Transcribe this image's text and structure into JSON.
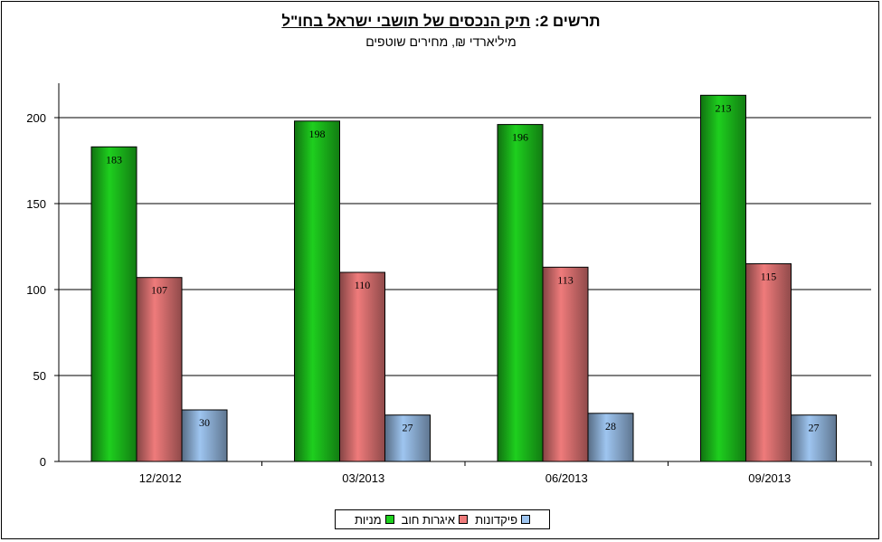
{
  "title": {
    "prefix": "תרשים 2:",
    "main": "תיק הנכסים של תושבי ישראל בחו\"ל"
  },
  "subtitle": "מיליארדי ₪, מחירים שוטפים",
  "chart_data": {
    "type": "bar",
    "categories": [
      "12/2012",
      "03/2013",
      "06/2013",
      "09/2013"
    ],
    "series": [
      {
        "name": "מניות",
        "values": [
          183,
          198,
          196,
          213
        ],
        "color": "#1ecf1e"
      },
      {
        "name": "איגרות חוב",
        "values": [
          107,
          110,
          113,
          115
        ],
        "color": "#ef7b7b"
      },
      {
        "name": "פיקדונות",
        "values": [
          30,
          27,
          28,
          27
        ],
        "color": "#9ec5f0"
      }
    ],
    "yticks": [
      0,
      50,
      100,
      150,
      200
    ],
    "ylim": [
      0,
      220
    ],
    "grid": true,
    "legend": "bottom"
  }
}
